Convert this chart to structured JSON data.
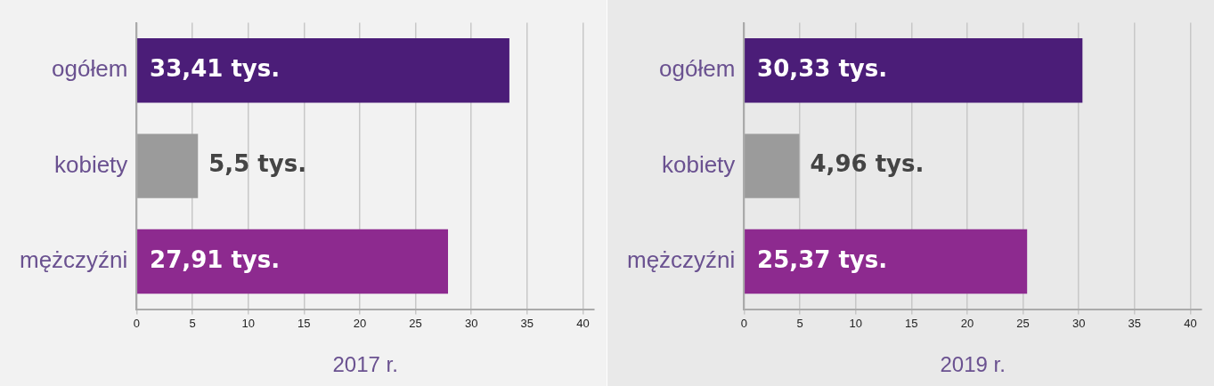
{
  "chart_data": [
    {
      "type": "bar",
      "orientation": "horizontal",
      "xlabel": "2017 r.",
      "categories": [
        "ogółem",
        "kobiety",
        "mężczyźni"
      ],
      "values": [
        33.41,
        5.5,
        27.91
      ],
      "colors": [
        "#4b1d78",
        "#9b9b9b",
        "#8d2a8f"
      ],
      "value_labels": [
        "33,41 tys.",
        "5,5 tys.",
        "27,91 tys."
      ],
      "xlim": [
        0,
        41
      ],
      "xticks": [
        0,
        5,
        10,
        15,
        20,
        25,
        30,
        35,
        40
      ],
      "grid": "x",
      "legend": false
    },
    {
      "type": "bar",
      "orientation": "horizontal",
      "xlabel": "2019 r.",
      "categories": [
        "ogółem",
        "kobiety",
        "mężczyźni"
      ],
      "values": [
        30.33,
        4.96,
        25.37
      ],
      "colors": [
        "#4b1d78",
        "#9b9b9b",
        "#8d2a8f"
      ],
      "value_labels": [
        "30,33 tys.",
        "4,96 tys.",
        "25,37 tys."
      ],
      "xlim": [
        0,
        41
      ],
      "xticks": [
        0,
        5,
        10,
        15,
        20,
        25,
        30,
        35,
        40
      ],
      "grid": "x",
      "legend": false
    }
  ]
}
